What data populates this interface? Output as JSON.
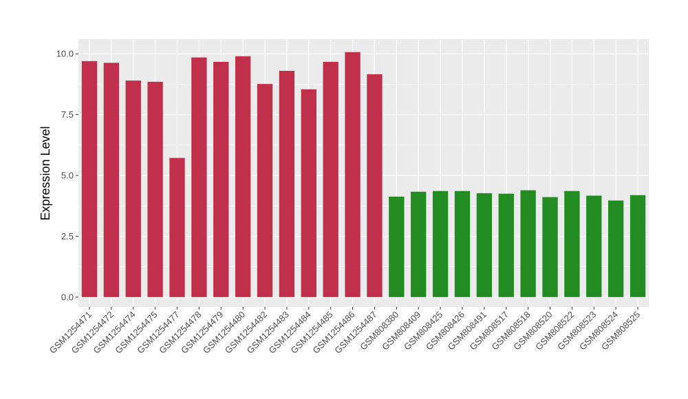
{
  "chart_data": {
    "type": "bar",
    "title": "",
    "xlabel": "",
    "ylabel": "Expression Level",
    "ylim": [
      -0.4,
      10.6
    ],
    "yticks": [
      0.0,
      2.5,
      5.0,
      7.5,
      10.0
    ],
    "ytick_labels": [
      "0.0",
      "2.5",
      "5.0",
      "7.5",
      "10.0"
    ],
    "grid": true,
    "legend": "none",
    "categories": [
      "GSM1254471",
      "GSM1254472",
      "GSM1254474",
      "GSM1254475",
      "GSM1254477",
      "GSM1254478",
      "GSM1254479",
      "GSM1254480",
      "GSM1254482",
      "GSM1254483",
      "GSM1254484",
      "GSM1254485",
      "GSM1254486",
      "GSM1254487",
      "GSM808380",
      "GSM808409",
      "GSM808425",
      "GSM808426",
      "GSM808491",
      "GSM808517",
      "GSM808518",
      "GSM808520",
      "GSM808522",
      "GSM808523",
      "GSM808524",
      "GSM808525"
    ],
    "values": [
      9.7,
      9.63,
      8.9,
      8.85,
      5.72,
      9.85,
      9.67,
      9.9,
      8.76,
      9.3,
      8.54,
      9.67,
      10.07,
      9.16,
      4.13,
      4.33,
      4.36,
      4.36,
      4.27,
      4.25,
      4.39,
      4.11,
      4.36,
      4.17,
      3.97,
      4.19
    ],
    "colors": [
      "#c0304a",
      "#c0304a",
      "#c0304a",
      "#c0304a",
      "#c0304a",
      "#c0304a",
      "#c0304a",
      "#c0304a",
      "#c0304a",
      "#c0304a",
      "#c0304a",
      "#c0304a",
      "#c0304a",
      "#c0304a",
      "#228b22",
      "#228b22",
      "#228b22",
      "#228b22",
      "#228b22",
      "#228b22",
      "#228b22",
      "#228b22",
      "#228b22",
      "#228b22",
      "#228b22",
      "#228b22"
    ],
    "panel_color": "#ebebeb",
    "grid_color": "#ffffff"
  }
}
